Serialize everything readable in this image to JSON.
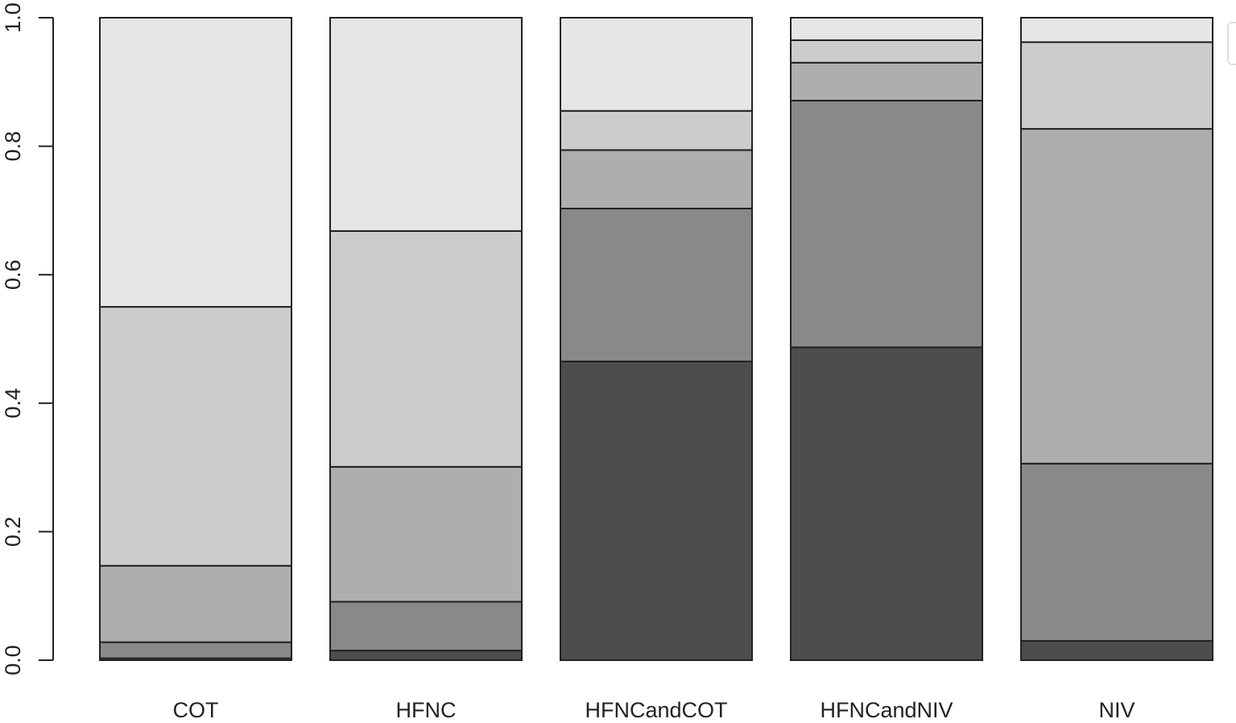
{
  "chart_data": {
    "type": "stacked-bar",
    "categories": [
      "COT",
      "HFNC",
      "HFNCandCOT",
      "HFNCandNIV",
      "NIV"
    ],
    "series": [
      {
        "color": "#4d4d4d",
        "values": [
          0.003,
          0.015,
          0.465,
          0.487,
          0.03
        ]
      },
      {
        "color": "#898989",
        "values": [
          0.025,
          0.076,
          0.238,
          0.384,
          0.276
        ]
      },
      {
        "color": "#aeaeae",
        "values": [
          0.119,
          0.21,
          0.091,
          0.059,
          0.521
        ]
      },
      {
        "color": "#cccccc",
        "values": [
          0.403,
          0.367,
          0.061,
          0.035,
          0.135
        ]
      },
      {
        "color": "#e6e6e6",
        "values": [
          0.45,
          0.332,
          0.145,
          0.035,
          0.038
        ]
      }
    ],
    "ylim": [
      0,
      1
    ],
    "yticks": [
      {
        "value": 0,
        "label": "0.0"
      },
      0.2,
      0.4,
      0.6,
      0.8,
      {
        "value": 1,
        "label": "1.0"
      }
    ]
  }
}
